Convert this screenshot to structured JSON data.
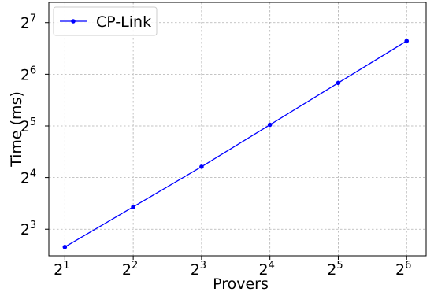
{
  "chart_data": {
    "type": "line",
    "title": "",
    "xlabel": "Provers",
    "ylabel": "Time (ms)",
    "x_scale": "log2",
    "y_scale": "log2",
    "xlim": [
      1.7,
      78
    ],
    "ylim": [
      5.6,
      168
    ],
    "grid": true,
    "legend_position": "upper-left",
    "x_ticks": [
      {
        "base": "2",
        "exp": "1",
        "value": 2
      },
      {
        "base": "2",
        "exp": "2",
        "value": 4
      },
      {
        "base": "2",
        "exp": "3",
        "value": 8
      },
      {
        "base": "2",
        "exp": "4",
        "value": 16
      },
      {
        "base": "2",
        "exp": "5",
        "value": 32
      },
      {
        "base": "2",
        "exp": "6",
        "value": 64
      }
    ],
    "y_ticks": [
      {
        "base": "2",
        "exp": "3",
        "value": 8
      },
      {
        "base": "2",
        "exp": "4",
        "value": 16
      },
      {
        "base": "2",
        "exp": "5",
        "value": 32
      },
      {
        "base": "2",
        "exp": "6",
        "value": 64
      },
      {
        "base": "2",
        "exp": "7",
        "value": 128
      }
    ],
    "series": [
      {
        "name": "CP-Link",
        "color": "#0000ff",
        "marker": "circle",
        "x": [
          2,
          4,
          8,
          16,
          32,
          64
        ],
        "y": [
          6.3,
          10.8,
          18.5,
          32.5,
          57.0,
          100.0
        ]
      }
    ]
  }
}
